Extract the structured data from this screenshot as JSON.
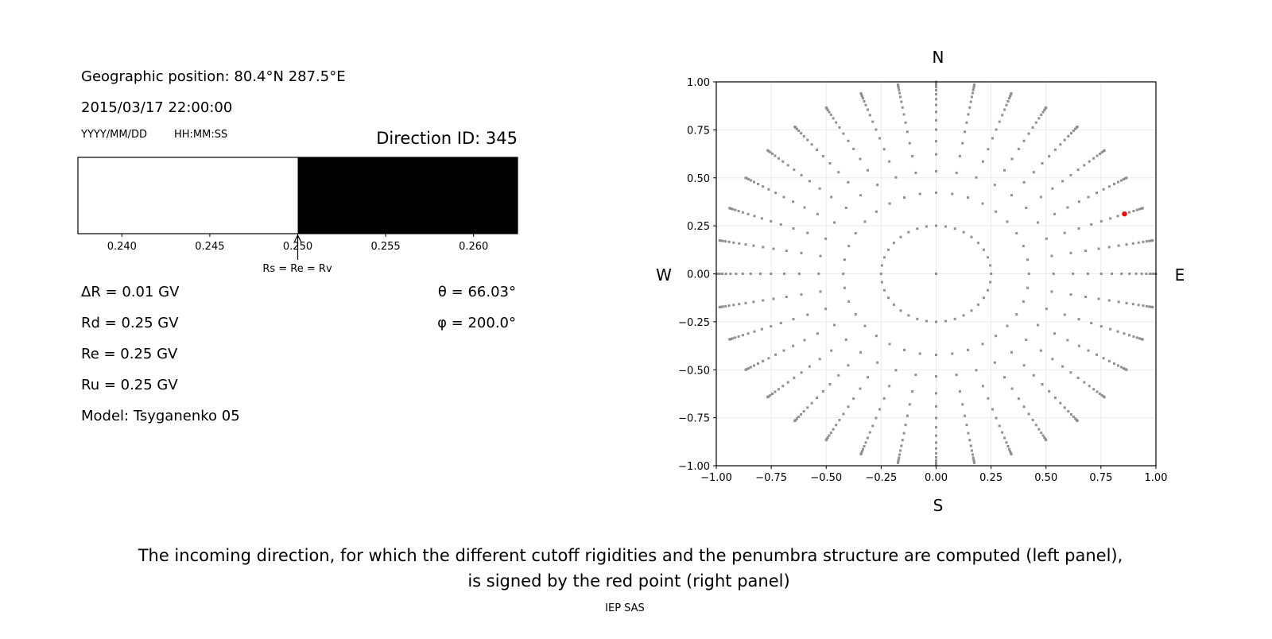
{
  "left_panel": {
    "geo_position": "Geographic position: 80.4°N 287.5°E",
    "datetime": "2015/03/17 22:00:00",
    "date_format": "YYYY/MM/DD",
    "time_format": "HH:MM:SS",
    "direction_id": "Direction ID: 345",
    "marker_label": "Rs = Re = Rv",
    "delta_r": "ΔR = 0.01 GV",
    "rd": "Rd = 0.25 GV",
    "re": "Re = 0.25 GV",
    "ru": "Ru = 0.25 GV",
    "model": "Model: Tsyganenko 05",
    "theta": "θ = 66.03°",
    "phi": "φ = 200.0°"
  },
  "chart_data": [
    {
      "type": "bar",
      "subtype": "penumbra-strip",
      "xlim": [
        0.2375,
        0.2625
      ],
      "xticks": [
        "0.240",
        "0.245",
        "0.250",
        "0.255",
        "0.260"
      ],
      "xtick_values": [
        0.24,
        0.245,
        0.25,
        0.255,
        0.26
      ],
      "segments": [
        {
          "from": 0.2375,
          "to": 0.25,
          "state": "allowed",
          "color": "#ffffff"
        },
        {
          "from": 0.25,
          "to": 0.2625,
          "state": "forbidden",
          "color": "#000000"
        }
      ],
      "marker_value": 0.25
    },
    {
      "type": "scatter",
      "xlim": [
        -1.0,
        1.0
      ],
      "ylim": [
        -1.0,
        1.0
      ],
      "xticks": [
        "−1.00",
        "−0.75",
        "−0.50",
        "−0.25",
        "0.00",
        "0.25",
        "0.50",
        "0.75",
        "1.00"
      ],
      "yticks": [
        "−1.00",
        "−0.75",
        "−0.50",
        "−0.25",
        "0.00",
        "0.25",
        "0.50",
        "0.75",
        "1.00"
      ],
      "tick_values": [
        -1,
        -0.75,
        -0.5,
        -0.25,
        0,
        0.25,
        0.5,
        0.75,
        1
      ],
      "grid": true,
      "compass": {
        "top": "N",
        "bottom": "S",
        "left": "W",
        "right": "E"
      },
      "directions_grid": {
        "description_projection": "r = sin(zenith)",
        "azimuths_deg_step": 10,
        "zenith_deg": [
          0,
          14.5,
          25,
          32.3,
          38.5,
          43.7,
          48.7,
          53.1,
          57.5,
          61.6,
          65.5,
          69.3,
          73,
          76.6,
          80,
          83.5,
          87,
          90
        ],
        "color": "#909090"
      },
      "selected_point": {
        "x": 0.857,
        "y": 0.312,
        "color": "#ff0000"
      }
    }
  ],
  "caption": {
    "line1": "The incoming direction, for which the different cutoff rigidities and the penumbra structure are computed (left panel),",
    "line2": "is signed by the red point (right panel)"
  },
  "footer": "IEP SAS"
}
